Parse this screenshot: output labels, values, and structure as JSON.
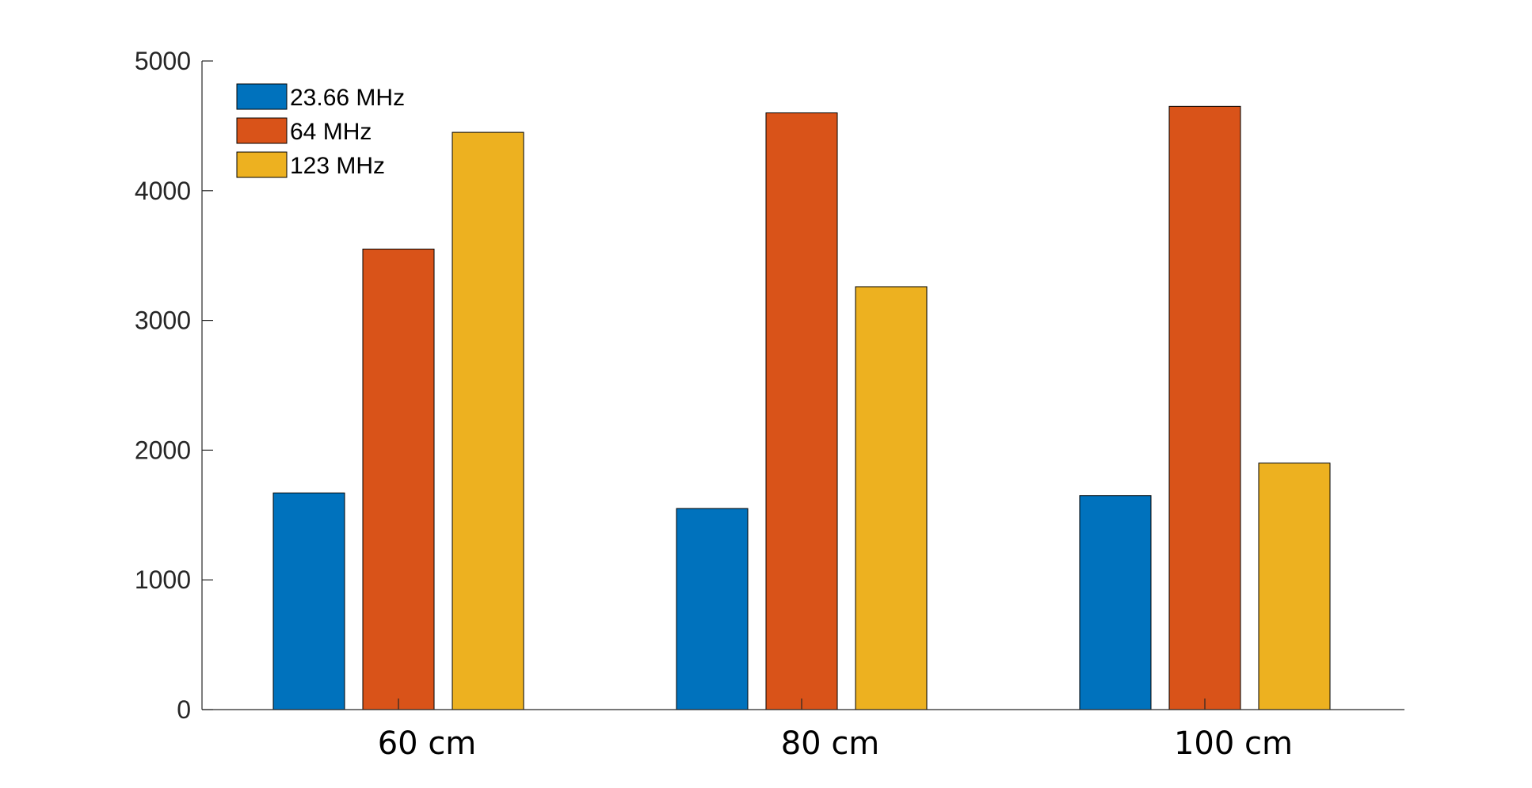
{
  "chart_data": {
    "type": "bar",
    "categories": [
      "60 cm",
      "80 cm",
      "100 cm"
    ],
    "series": [
      {
        "name": "23.66 MHz",
        "values": [
          1670,
          1550,
          1650
        ],
        "color": "#0072BD"
      },
      {
        "name": "64 MHz",
        "values": [
          3550,
          4600,
          4650
        ],
        "color": "#D95319"
      },
      {
        "name": "123 MHz",
        "values": [
          4450,
          3260,
          1900
        ],
        "color": "#EDB120"
      }
    ],
    "title": "",
    "xlabel": "",
    "ylabel": "",
    "ylim": [
      0,
      5000
    ],
    "yticks": [
      0,
      1000,
      2000,
      3000,
      4000,
      5000
    ],
    "legend": "top-left",
    "grid": false
  }
}
